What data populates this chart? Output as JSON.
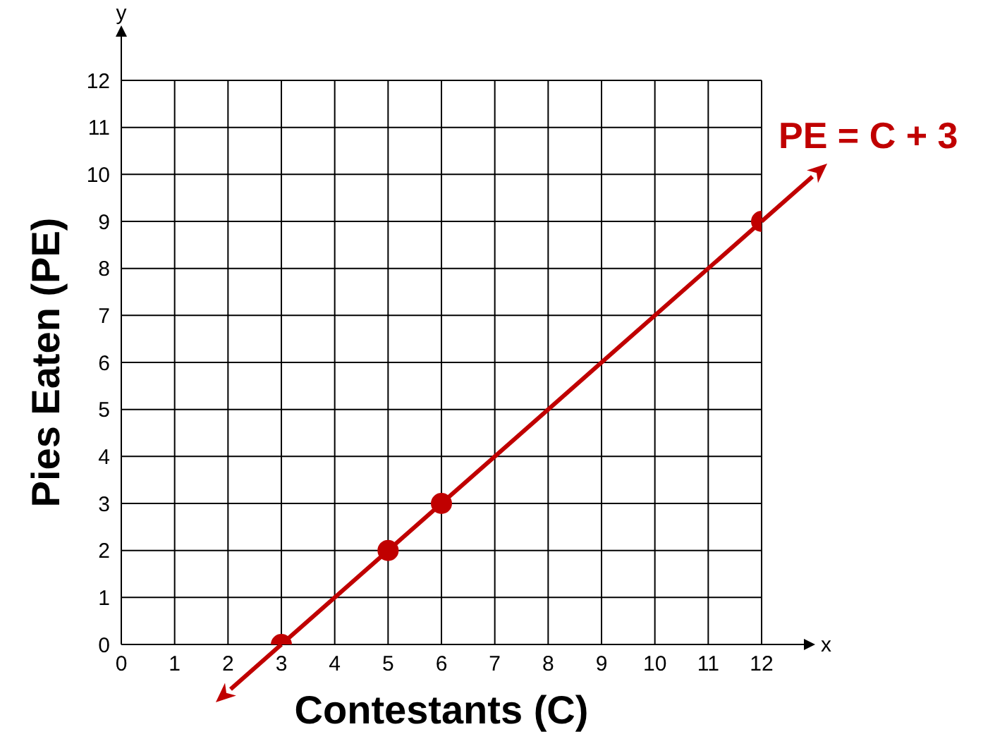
{
  "chart_data": {
    "type": "line",
    "xlabel": "Contestants (C)",
    "ylabel": "Pies Eaten (PE)",
    "x": [
      3,
      5,
      6,
      12
    ],
    "series": [
      {
        "name": "PE = C + 3",
        "color": "#c00000",
        "values": [
          0,
          2,
          3,
          9
        ]
      }
    ],
    "xlim": [
      0,
      12
    ],
    "ylim": [
      0,
      12
    ],
    "xticks": [
      0,
      1,
      2,
      3,
      4,
      5,
      6,
      7,
      8,
      9,
      10,
      11,
      12
    ],
    "yticks": [
      0,
      1,
      2,
      3,
      4,
      5,
      6,
      7,
      8,
      9,
      10,
      11,
      12
    ],
    "annotations": [
      "x",
      "y"
    ],
    "grid": true,
    "marker": "circle",
    "line_style": "solid"
  }
}
